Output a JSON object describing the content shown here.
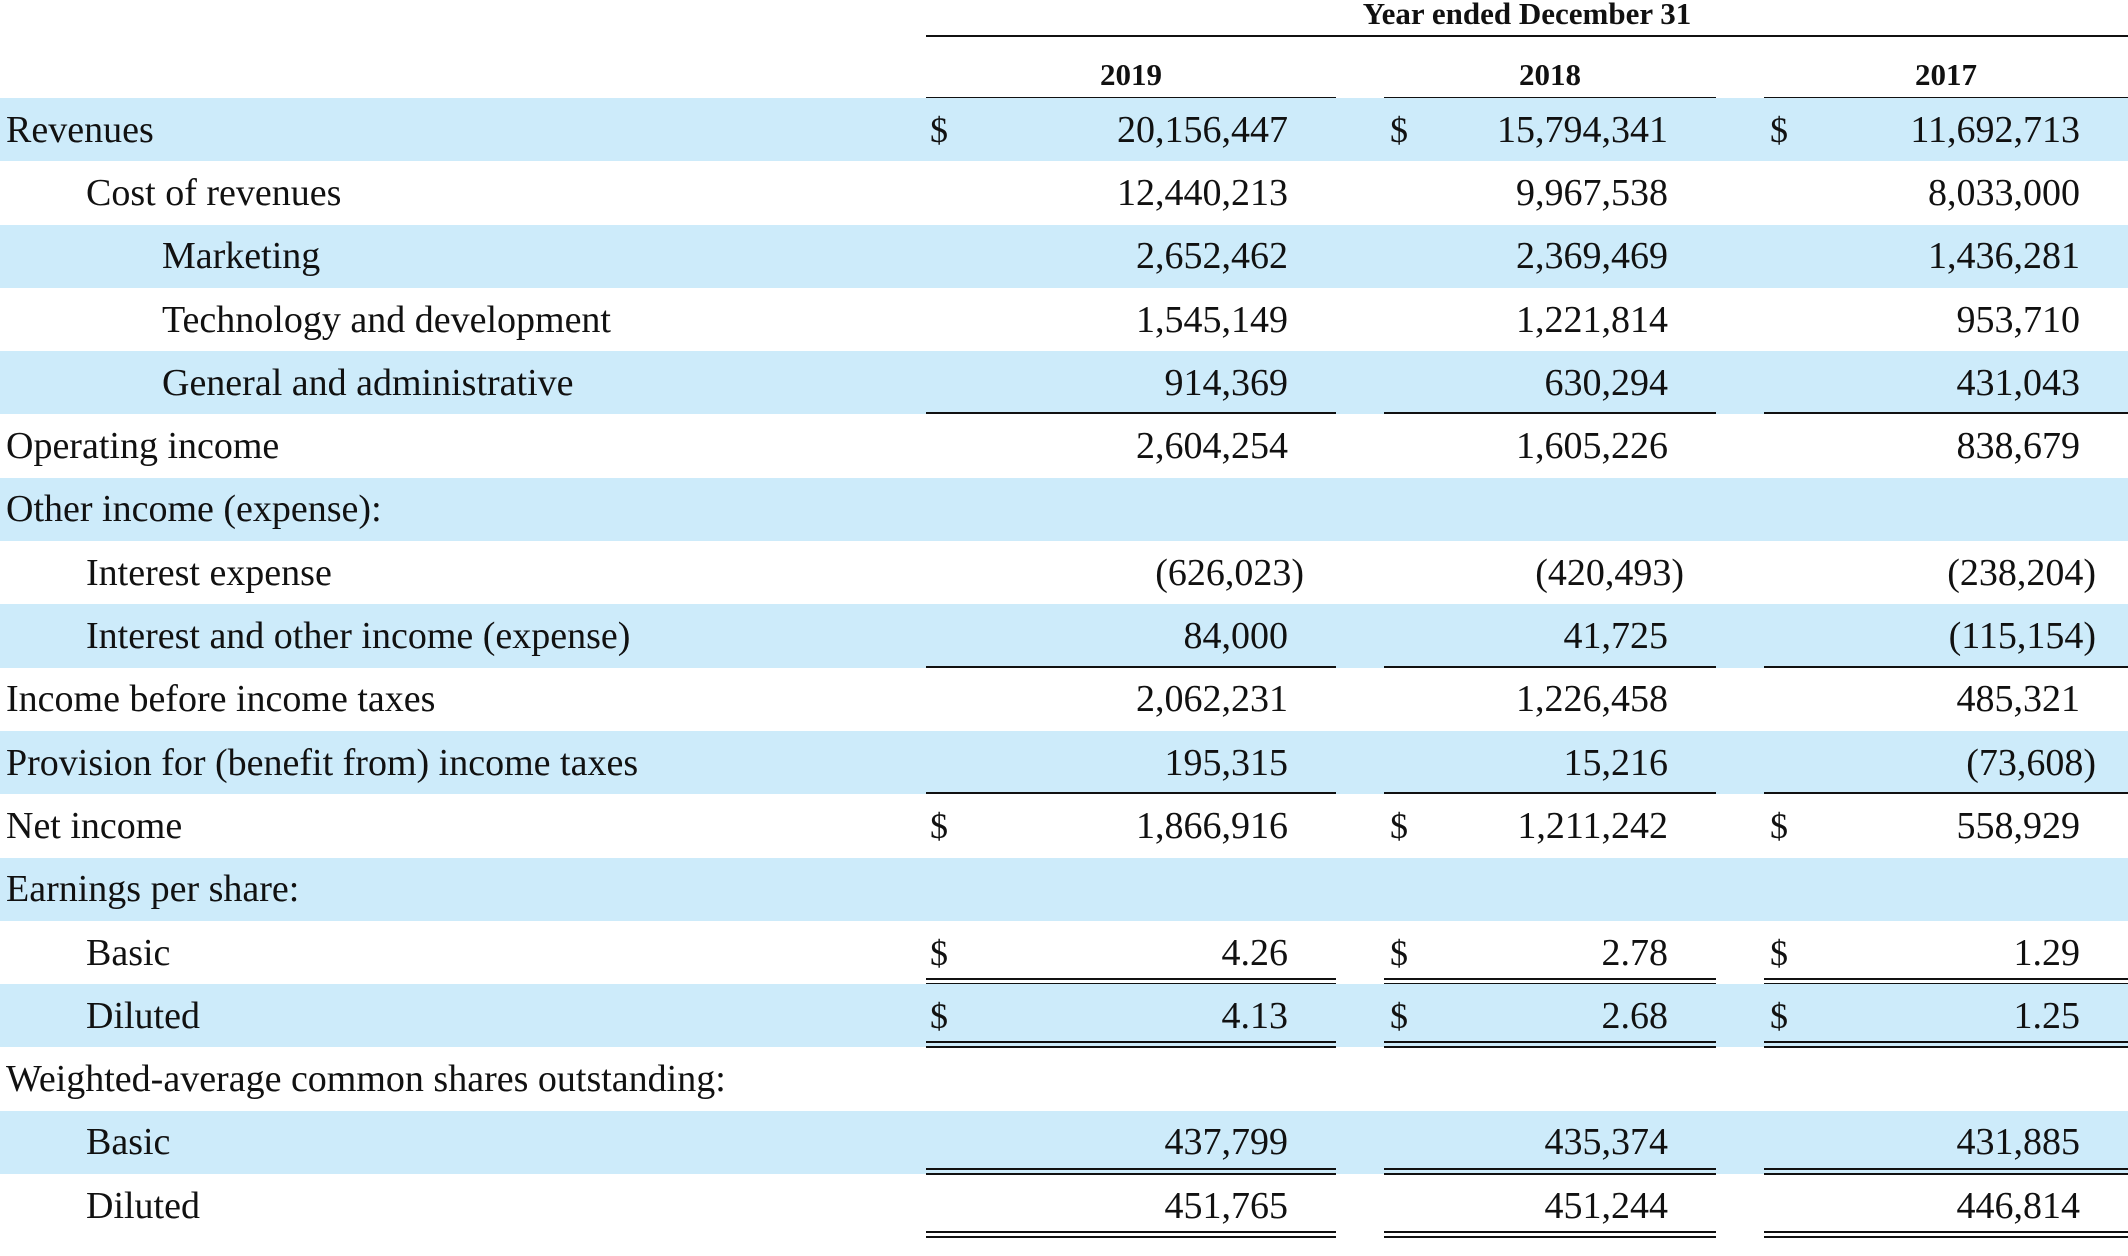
{
  "header": {
    "title": "Year ended December 31",
    "years": [
      "2019",
      "2018",
      "2017"
    ]
  },
  "currency_symbol": "$",
  "rows": [
    {
      "label": "Revenues",
      "indent": 0,
      "values": [
        "20,156,447",
        "15,794,341",
        "11,692,713"
      ],
      "dollar": true,
      "rule": "none"
    },
    {
      "label": "Cost of revenues",
      "indent": 1,
      "values": [
        "12,440,213",
        "9,967,538",
        "8,033,000"
      ],
      "dollar": false,
      "rule": "none"
    },
    {
      "label": "Marketing",
      "indent": 2,
      "values": [
        "2,652,462",
        "2,369,469",
        "1,436,281"
      ],
      "dollar": false,
      "rule": "none"
    },
    {
      "label": "Technology and development",
      "indent": 2,
      "values": [
        "1,545,149",
        "1,221,814",
        "953,710"
      ],
      "dollar": false,
      "rule": "none"
    },
    {
      "label": "General and administrative",
      "indent": 2,
      "values": [
        "914,369",
        "630,294",
        "431,043"
      ],
      "dollar": false,
      "rule": "single"
    },
    {
      "label": "Operating income",
      "indent": 0,
      "values": [
        "2,604,254",
        "1,605,226",
        "838,679"
      ],
      "dollar": false,
      "rule": "none"
    },
    {
      "label": "Other income (expense):",
      "indent": 0,
      "values": [
        "",
        "",
        ""
      ],
      "dollar": false,
      "rule": "none"
    },
    {
      "label": "Interest expense",
      "indent": 1,
      "values": [
        "(626,023)",
        "(420,493)",
        "(238,204)"
      ],
      "dollar": false,
      "rule": "none"
    },
    {
      "label": "Interest and other income (expense)",
      "indent": 1,
      "values": [
        "84,000",
        "41,725",
        "(115,154)"
      ],
      "dollar": false,
      "rule": "single"
    },
    {
      "label": "Income before income taxes",
      "indent": 0,
      "values": [
        "2,062,231",
        "1,226,458",
        "485,321"
      ],
      "dollar": false,
      "rule": "none"
    },
    {
      "label": "Provision for (benefit from) income taxes",
      "indent": 0,
      "values": [
        "195,315",
        "15,216",
        "(73,608)"
      ],
      "dollar": false,
      "rule": "single"
    },
    {
      "label": "Net income",
      "indent": 0,
      "values": [
        "1,866,916",
        "1,211,242",
        "558,929"
      ],
      "dollar": true,
      "rule": "none"
    },
    {
      "label": "Earnings per share:",
      "indent": 0,
      "values": [
        "",
        "",
        ""
      ],
      "dollar": false,
      "rule": "none"
    },
    {
      "label": "Basic",
      "indent": 1,
      "values": [
        "4.26",
        "2.78",
        "1.29"
      ],
      "dollar": true,
      "rule": "double"
    },
    {
      "label": "Diluted",
      "indent": 1,
      "values": [
        "4.13",
        "2.68",
        "1.25"
      ],
      "dollar": true,
      "rule": "double"
    },
    {
      "label": "Weighted-average common shares outstanding:",
      "indent": 0,
      "values": [
        "",
        "",
        ""
      ],
      "dollar": false,
      "rule": "none"
    },
    {
      "label": "Basic",
      "indent": 1,
      "values": [
        "437,799",
        "435,374",
        "431,885"
      ],
      "dollar": false,
      "rule": "double"
    },
    {
      "label": "Diluted",
      "indent": 1,
      "values": [
        "451,765",
        "451,244",
        "446,814"
      ],
      "dollar": false,
      "rule": "double"
    }
  ]
}
